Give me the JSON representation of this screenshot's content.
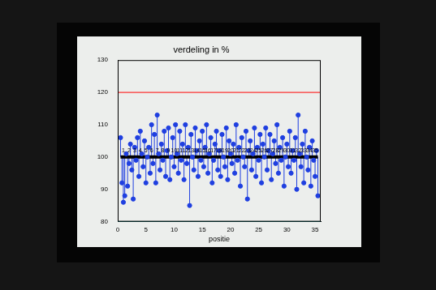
{
  "chart_data": {
    "type": "stem",
    "title": "verdeling in %",
    "x_label": "positie",
    "x": [
      0.5,
      0.75,
      1,
      1.25,
      1.5,
      1.75,
      2,
      2.25,
      2.5,
      2.75,
      3,
      3.25,
      3.5,
      3.75,
      4,
      4.25,
      4.5,
      4.75,
      5,
      5.25,
      5.5,
      5.75,
      6,
      6.25,
      6.5,
      6.75,
      7,
      7.25,
      7.5,
      7.75,
      8,
      8.25,
      8.5,
      8.75,
      9,
      9.25,
      9.5,
      9.75,
      10,
      10.25,
      10.5,
      10.75,
      11,
      11.25,
      11.5,
      11.75,
      12,
      12.25,
      12.5,
      12.75,
      13,
      13.25,
      13.5,
      13.75,
      14,
      14.25,
      14.5,
      14.75,
      15,
      15.25,
      15.5,
      15.75,
      16,
      16.25,
      16.5,
      16.75,
      17,
      17.25,
      17.5,
      17.75,
      18,
      18.25,
      18.5,
      18.75,
      19,
      19.25,
      19.5,
      19.75,
      20,
      20.25,
      20.5,
      20.75,
      21,
      21.25,
      21.5,
      21.75,
      22,
      22.25,
      22.5,
      22.75,
      23,
      23.25,
      23.5,
      23.75,
      24,
      24.25,
      24.5,
      24.75,
      25,
      25.25,
      25.5,
      25.75,
      26,
      26.25,
      26.5,
      26.75,
      27,
      27.25,
      27.5,
      27.75,
      28,
      28.25,
      28.5,
      28.75,
      29,
      29.25,
      29.5,
      29.75,
      30,
      30.25,
      30.5,
      30.75,
      31,
      31.25,
      31.5,
      31.75,
      32,
      32.25,
      32.5,
      32.75,
      33,
      33.25,
      33.5,
      33.75,
      34,
      34.25,
      34.5,
      34.75,
      35,
      35.25,
      35.5
    ],
    "values": [
      106,
      92,
      86,
      88,
      101,
      91,
      98,
      104,
      96,
      87,
      103,
      99,
      106,
      94,
      108,
      101,
      97,
      105,
      92,
      100,
      103,
      95,
      110,
      98,
      107,
      92,
      113,
      101,
      96,
      104,
      99,
      108,
      94,
      102,
      109,
      93,
      100,
      106,
      97,
      110,
      101,
      95,
      108,
      99,
      104,
      93,
      110,
      98,
      103,
      85,
      107,
      100,
      96,
      109,
      102,
      94,
      105,
      99,
      108,
      97,
      103,
      110,
      95,
      101,
      106,
      92,
      99,
      104,
      108,
      96,
      102,
      94,
      107,
      100,
      97,
      109,
      93,
      105,
      101,
      98,
      104,
      95,
      110,
      99,
      103,
      91,
      106,
      100,
      97,
      108,
      87,
      102,
      105,
      96,
      101,
      109,
      94,
      103,
      99,
      107,
      92,
      104,
      100,
      109,
      96,
      102,
      107,
      93,
      101,
      105,
      98,
      110,
      95,
      103,
      99,
      106,
      91,
      100,
      104,
      97,
      108,
      95,
      102,
      99,
      106,
      90,
      113,
      101,
      97,
      104,
      92,
      108,
      100,
      96,
      103,
      91,
      105,
      99,
      94,
      102,
      88
    ],
    "color": "#1f3fe0",
    "marker": "circle",
    "baseline": 100,
    "reference_lines": [
      {
        "value": 120,
        "color": "#ff0000"
      },
      {
        "value": 80,
        "color": "#00bfbf"
      }
    ],
    "annotations": [
      {
        "text": "1",
        "x": 1,
        "y": 101
      },
      {
        "text": "2",
        "x": 2,
        "y": 101
      },
      {
        "text": "3",
        "x": 3,
        "y": 101
      },
      {
        "text": "4",
        "x": 4,
        "y": 101
      },
      {
        "text": "5",
        "x": 5,
        "y": 101
      },
      {
        "text": "6",
        "x": 6,
        "y": 101
      },
      {
        "text": "7",
        "x": 7,
        "y": 101
      },
      {
        "text": "8",
        "x": 8,
        "y": 101
      },
      {
        "text": "9",
        "x": 9,
        "y": 101
      },
      {
        "text": "10",
        "x": 10,
        "y": 101
      },
      {
        "text": "11",
        "x": 11,
        "y": 101
      },
      {
        "text": "12",
        "x": 12,
        "y": 101
      },
      {
        "text": "13",
        "x": 13,
        "y": 101
      },
      {
        "text": "14",
        "x": 14,
        "y": 101
      },
      {
        "text": "15",
        "x": 15,
        "y": 101
      },
      {
        "text": "16",
        "x": 16,
        "y": 101
      },
      {
        "text": "17",
        "x": 17,
        "y": 101
      },
      {
        "text": "18",
        "x": 18,
        "y": 101
      },
      {
        "text": "19",
        "x": 19,
        "y": 101
      },
      {
        "text": "20",
        "x": 20,
        "y": 101
      },
      {
        "text": "21",
        "x": 21,
        "y": 101
      },
      {
        "text": "22",
        "x": 22,
        "y": 101
      },
      {
        "text": "23",
        "x": 23,
        "y": 101
      },
      {
        "text": "24",
        "x": 24,
        "y": 101
      },
      {
        "text": "25",
        "x": 25,
        "y": 101
      },
      {
        "text": "26",
        "x": 26,
        "y": 101
      },
      {
        "text": "27",
        "x": 27,
        "y": 101
      },
      {
        "text": "28",
        "x": 28,
        "y": 101
      },
      {
        "text": "29",
        "x": 29,
        "y": 101
      },
      {
        "text": "30",
        "x": 30,
        "y": 101
      },
      {
        "text": "31",
        "x": 31,
        "y": 101
      },
      {
        "text": "32",
        "x": 32,
        "y": 101
      },
      {
        "text": "33",
        "x": 33,
        "y": 101
      },
      {
        "text": "34",
        "x": 34,
        "y": 101
      },
      {
        "text": "35",
        "x": 35,
        "y": 101
      }
    ],
    "xlim": [
      0,
      36
    ],
    "xticks": [
      0,
      5,
      10,
      15,
      20,
      25,
      30,
      35
    ],
    "ylim": [
      80,
      130
    ],
    "yticks": [
      80,
      90,
      100,
      110,
      120,
      130
    ],
    "grid": false
  }
}
